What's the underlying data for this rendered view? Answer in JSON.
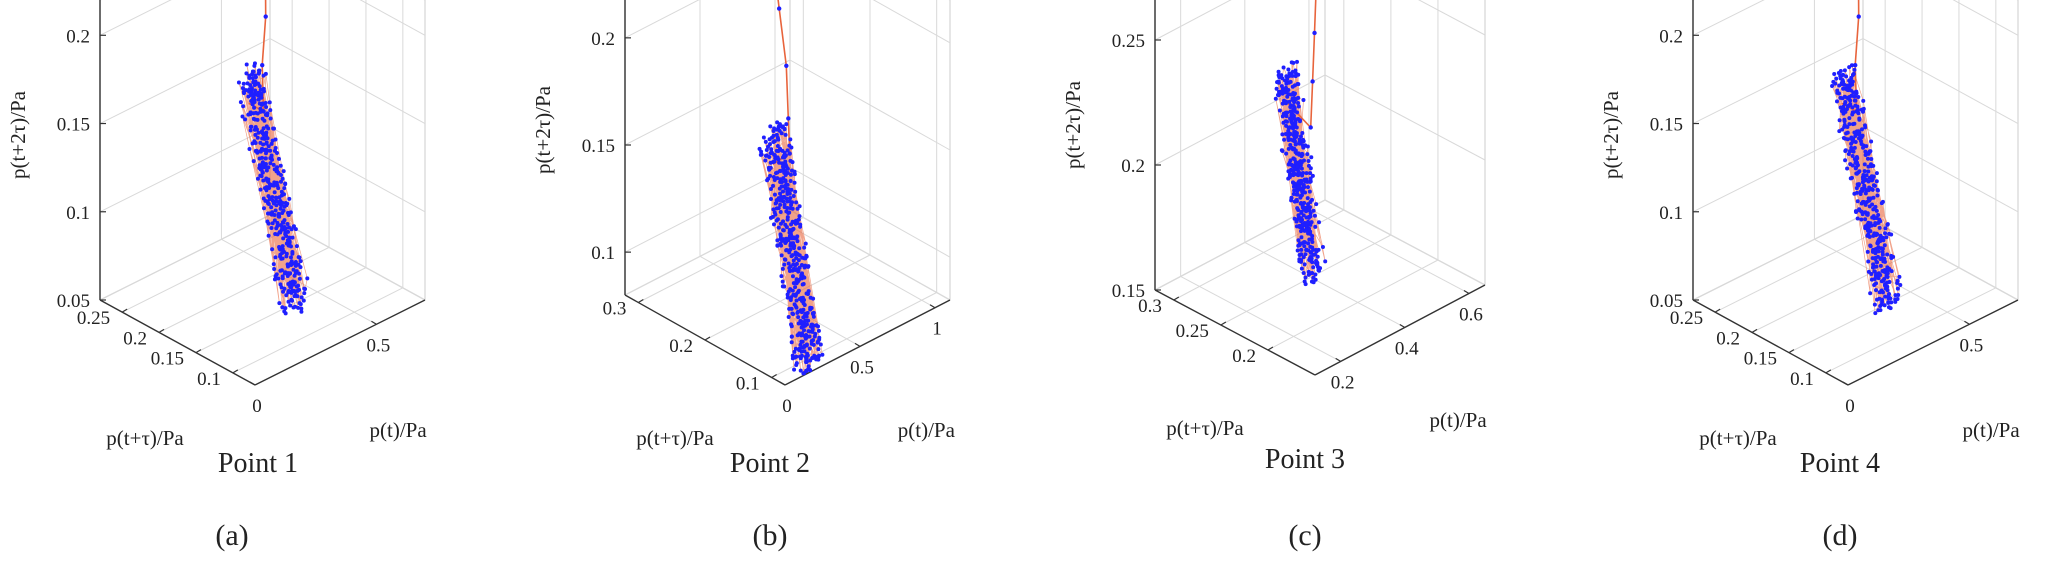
{
  "figure": {
    "panels": [
      {
        "point_label": "Point 1",
        "panel_label": "(a)"
      },
      {
        "point_label": "Point 2",
        "panel_label": "(b)"
      },
      {
        "point_label": "Point 3",
        "panel_label": "(c)"
      },
      {
        "point_label": "Point 4",
        "panel_label": "(d)"
      }
    ]
  },
  "colors": {
    "markers": "#1f1fff",
    "line": "#e8643c",
    "axis": "#333333",
    "grid": "#d9d9d9",
    "text": "#222222"
  },
  "chart_data": [
    {
      "type": "scatter3d",
      "title": "Point 1",
      "xlabel": "p(t)/Pa",
      "ylabel": "p(t+τ)/Pa",
      "zlabel": "p(t+2τ)/Pa",
      "x_ticks": [
        "0",
        "0.5"
      ],
      "y_ticks": [
        "0.1",
        "0.15",
        "0.2",
        "0.25"
      ],
      "z_ticks": [
        "0.05",
        "0.1",
        "0.15",
        "0.2"
      ],
      "xlim": [
        0,
        0.7
      ],
      "ylim": [
        0.07,
        0.28
      ],
      "zlim": [
        0.05,
        0.22
      ],
      "transient": [
        [
          0.62,
          0.27,
          0.215
        ],
        [
          0.6,
          0.255,
          0.212
        ],
        [
          0.56,
          0.24,
          0.2
        ],
        [
          0.5,
          0.22,
          0.19
        ],
        [
          0.44,
          0.205,
          0.17
        ],
        [
          0.4,
          0.19,
          0.15
        ]
      ],
      "attractor": {
        "center": [
          0.33,
          0.155,
          0.12
        ],
        "spread": [
          0.07,
          0.055,
          0.05
        ],
        "points": 420,
        "seed": 11
      }
    },
    {
      "type": "scatter3d",
      "title": "Point 2",
      "xlabel": "p(t)/Pa",
      "ylabel": "p(t+τ)/Pa",
      "zlabel": "p(t+2τ)/Pa",
      "x_ticks": [
        "0",
        "0.5",
        "1"
      ],
      "y_ticks": [
        "0.1",
        "0.2",
        "0.3"
      ],
      "z_ticks": [
        "0.1",
        "0.15",
        "0.2"
      ],
      "xlim": [
        0,
        1.1
      ],
      "ylim": [
        0.08,
        0.32
      ],
      "zlim": [
        0.08,
        0.22
      ],
      "transient": [
        [
          0.95,
          0.31,
          0.2
        ],
        [
          0.85,
          0.28,
          0.19
        ],
        [
          0.72,
          0.24,
          0.175
        ],
        [
          0.6,
          0.21,
          0.16
        ],
        [
          0.52,
          0.19,
          0.15
        ]
      ],
      "attractor": {
        "center": [
          0.4,
          0.16,
          0.115
        ],
        "spread": [
          0.14,
          0.06,
          0.04
        ],
        "points": 460,
        "seed": 23
      }
    },
    {
      "type": "scatter3d",
      "title": "Point 3",
      "xlabel": "p(t)/Pa",
      "ylabel": "p(t+τ)/Pa",
      "zlabel": "p(t+2τ)/Pa",
      "x_ticks": [
        "0.2",
        "0.4",
        "0.6"
      ],
      "y_ticks": [
        "0.2",
        "0.25",
        "0.3"
      ],
      "z_ticks": [
        "0.15",
        "0.2",
        "0.25"
      ],
      "xlim": [
        0.12,
        0.65
      ],
      "ylim": [
        0.15,
        0.32
      ],
      "zlim": [
        0.15,
        0.27
      ],
      "transient": [
        [
          0.6,
          0.31,
          0.265
        ],
        [
          0.55,
          0.295,
          0.25
        ],
        [
          0.5,
          0.28,
          0.235
        ],
        [
          0.45,
          0.265,
          0.222
        ],
        [
          0.4,
          0.25,
          0.21
        ]
      ],
      "attractor": {
        "center": [
          0.32,
          0.235,
          0.2
        ],
        "spread": [
          0.06,
          0.035,
          0.03
        ],
        "points": 420,
        "seed": 37
      }
    },
    {
      "type": "scatter3d",
      "title": "Point 4",
      "xlabel": "p(t)/Pa",
      "ylabel": "p(t+τ)/Pa",
      "zlabel": "p(t+2τ)/Pa",
      "x_ticks": [
        "0",
        "0.5"
      ],
      "y_ticks": [
        "0.1",
        "0.15",
        "0.2",
        "0.25"
      ],
      "z_ticks": [
        "0.05",
        "0.1",
        "0.15",
        "0.2"
      ],
      "xlim": [
        0,
        0.7
      ],
      "ylim": [
        0.07,
        0.28
      ],
      "zlim": [
        0.05,
        0.22
      ],
      "transient": [
        [
          0.62,
          0.27,
          0.215
        ],
        [
          0.6,
          0.255,
          0.212
        ],
        [
          0.56,
          0.24,
          0.2
        ],
        [
          0.5,
          0.22,
          0.19
        ],
        [
          0.44,
          0.205,
          0.17
        ],
        [
          0.4,
          0.19,
          0.15
        ]
      ],
      "attractor": {
        "center": [
          0.33,
          0.155,
          0.12
        ],
        "spread": [
          0.07,
          0.055,
          0.05
        ],
        "points": 420,
        "seed": 53
      }
    }
  ]
}
